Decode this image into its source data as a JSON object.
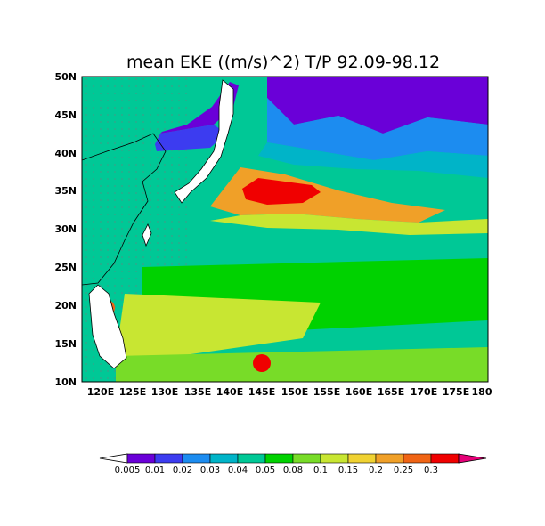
{
  "title": "mean EKE ((m/s)^2) T/P 92.09-98.12",
  "map": {
    "lon_range": [
      117,
      180
    ],
    "lat_range": [
      10,
      50
    ],
    "lat_ticks": [
      "10N",
      "15N",
      "20N",
      "25N",
      "30N",
      "35N",
      "40N",
      "45N",
      "50N"
    ],
    "lon_ticks": [
      "120E",
      "125E",
      "130E",
      "135E",
      "140E",
      "145E",
      "150E",
      "155E",
      "160E",
      "165E",
      "170E",
      "175E",
      "180"
    ]
  },
  "colorbar": {
    "labels": [
      "0.005",
      "0.01",
      "0.02",
      "0.03",
      "0.04",
      "0.05",
      "0.08",
      "0.1",
      "0.15",
      "0.2",
      "0.25",
      "0.3"
    ],
    "colors": [
      "#ffffff",
      "#6a00d8",
      "#3c3cf0",
      "#1c8cf0",
      "#00b4c8",
      "#00c896",
      "#00d200",
      "#78dc28",
      "#c8e632",
      "#f0d232",
      "#f0a028",
      "#f06414",
      "#f00000",
      "#e60078"
    ]
  }
}
